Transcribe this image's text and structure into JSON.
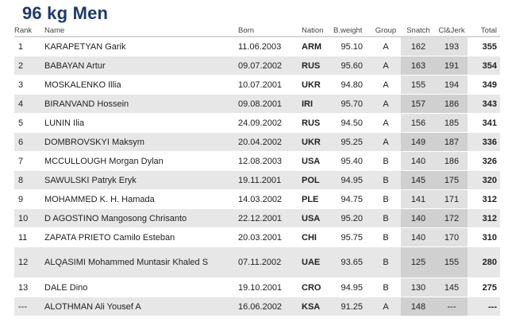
{
  "title": "96 kg Men",
  "headers": {
    "rank": "Rank",
    "name": "Name",
    "born": "Born",
    "nation": "Nation",
    "bweight": "B.weight",
    "group": "Group",
    "snatch": "Snatch",
    "cljerk": "Cl&Jerk",
    "total": "Total"
  },
  "rows": [
    {
      "rank": "1",
      "name": "KARAPETYAN Garik",
      "born": "11.06.2003",
      "nation": "ARM",
      "bweight": "95.10",
      "group": "A",
      "snatch": "162",
      "cljerk": "193",
      "total": "355"
    },
    {
      "rank": "2",
      "name": "BABAYAN Artur",
      "born": "09.07.2002",
      "nation": "RUS",
      "bweight": "95.60",
      "group": "A",
      "snatch": "163",
      "cljerk": "191",
      "total": "354"
    },
    {
      "rank": "3",
      "name": "MOSKALENKO Illia",
      "born": "10.07.2001",
      "nation": "UKR",
      "bweight": "94.80",
      "group": "A",
      "snatch": "155",
      "cljerk": "194",
      "total": "349"
    },
    {
      "rank": "4",
      "name": "BIRANVAND Hossein",
      "born": "09.08.2001",
      "nation": "IRI",
      "bweight": "95.70",
      "group": "A",
      "snatch": "157",
      "cljerk": "186",
      "total": "343"
    },
    {
      "rank": "5",
      "name": "LUNIN Ilia",
      "born": "24.09.2002",
      "nation": "RUS",
      "bweight": "94.50",
      "group": "A",
      "snatch": "156",
      "cljerk": "185",
      "total": "341"
    },
    {
      "rank": "6",
      "name": "DOMBROVSKYI Maksym",
      "born": "20.04.2002",
      "nation": "UKR",
      "bweight": "95.25",
      "group": "A",
      "snatch": "149",
      "cljerk": "187",
      "total": "336"
    },
    {
      "rank": "7",
      "name": "MCCULLOUGH Morgan Dylan",
      "born": "12.08.2003",
      "nation": "USA",
      "bweight": "95.40",
      "group": "B",
      "snatch": "140",
      "cljerk": "186",
      "total": "326"
    },
    {
      "rank": "8",
      "name": "SAWULSKI Patryk Eryk",
      "born": "19.11.2001",
      "nation": "POL",
      "bweight": "94.95",
      "group": "B",
      "snatch": "145",
      "cljerk": "175",
      "total": "320"
    },
    {
      "rank": "9",
      "name": "MOHAMMED K. H. Hamada",
      "born": "14.03.2002",
      "nation": "PLE",
      "bweight": "94.75",
      "group": "B",
      "snatch": "141",
      "cljerk": "171",
      "total": "312"
    },
    {
      "rank": "10",
      "name": "D AGOSTINO Mangosong Chrisanto",
      "born": "22.12.2001",
      "nation": "USA",
      "bweight": "95.20",
      "group": "B",
      "snatch": "140",
      "cljerk": "172",
      "total": "312"
    },
    {
      "rank": "11",
      "name": "ZAPATA PRIETO Camilo Esteban",
      "born": "20.03.2001",
      "nation": "CHI",
      "bweight": "95.75",
      "group": "B",
      "snatch": "140",
      "cljerk": "170",
      "total": "310"
    },
    {
      "rank": "12",
      "name": "ALQASIMI Mohammed Muntasir Khaled S",
      "born": "07.11.2002",
      "nation": "UAE",
      "bweight": "93.65",
      "group": "B",
      "snatch": "125",
      "cljerk": "155",
      "total": "280"
    },
    {
      "rank": "13",
      "name": "DALE Dino",
      "born": "19.10.2001",
      "nation": "CRO",
      "bweight": "94.95",
      "group": "B",
      "snatch": "130",
      "cljerk": "145",
      "total": "275"
    },
    {
      "rank": "---",
      "name": "ALOTHMAN Ali Yousef A",
      "born": "16.06.2002",
      "nation": "KSA",
      "bweight": "91.25",
      "group": "A",
      "snatch": "148",
      "cljerk": "---",
      "total": "---"
    }
  ]
}
